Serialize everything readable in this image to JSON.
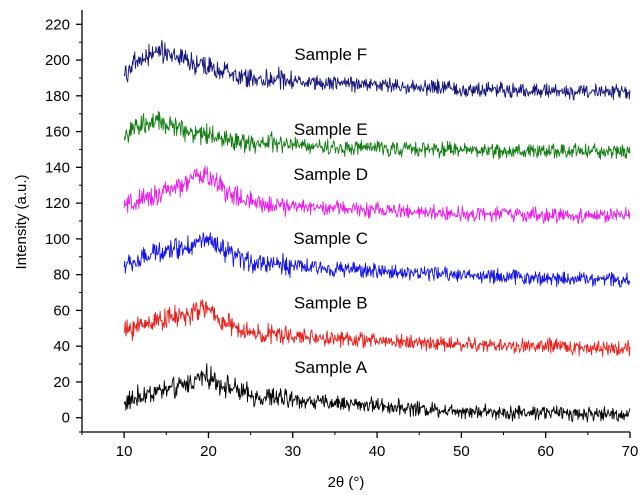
{
  "chart_data": {
    "type": "line",
    "title": "",
    "xlabel": "2θ (°)",
    "ylabel": "Intensity (a.u.)",
    "xlim": [
      5,
      70
    ],
    "ylim": [
      -8,
      228
    ],
    "x_ticks": [
      10,
      20,
      30,
      40,
      50,
      60,
      70
    ],
    "x_tick_labels": [
      "10",
      "20",
      "30",
      "40",
      "50",
      "60",
      "70"
    ],
    "y_ticks": [
      0,
      20,
      40,
      60,
      80,
      100,
      120,
      140,
      160,
      180,
      200,
      220
    ],
    "y_tick_labels": [
      "0",
      "20",
      "40",
      "60",
      "80",
      "100",
      "120",
      "140",
      "160",
      "180",
      "200",
      "220"
    ],
    "grid": false,
    "legend": "labels placed directly above each trace",
    "series": [
      {
        "name": "Sample A",
        "color": "#000000",
        "label_at": {
          "x": 34.5,
          "y": 25
        },
        "x": [
          10,
          12,
          14,
          16,
          18,
          19.5,
          21,
          23,
          25,
          28,
          32,
          36,
          40,
          45,
          50,
          55,
          60,
          65,
          70
        ],
        "y": [
          8,
          12,
          15,
          16,
          20,
          24,
          20,
          16,
          12,
          11,
          9,
          8,
          7,
          5,
          4,
          3,
          3,
          2,
          2
        ]
      },
      {
        "name": "Sample B",
        "color": "#e8201c",
        "label_at": {
          "x": 34.5,
          "y": 61
        },
        "x": [
          10,
          12,
          14,
          16,
          18,
          19.5,
          21,
          23,
          25,
          28,
          32,
          36,
          40,
          45,
          50,
          55,
          60,
          65,
          70
        ],
        "y": [
          48,
          52,
          55,
          56,
          58,
          62,
          56,
          50,
          47,
          46,
          45,
          44,
          43,
          42,
          41,
          40,
          40,
          39,
          39
        ]
      },
      {
        "name": "Sample C",
        "color": "#1414e6",
        "label_at": {
          "x": 34.5,
          "y": 97
        },
        "x": [
          10,
          12,
          14,
          16,
          18,
          19.5,
          21,
          23,
          25,
          28,
          32,
          36,
          40,
          45,
          50,
          55,
          60,
          65,
          70
        ],
        "y": [
          85,
          88,
          93,
          95,
          96,
          100,
          95,
          90,
          87,
          86,
          84,
          83,
          82,
          81,
          80,
          79,
          78,
          78,
          77
        ]
      },
      {
        "name": "Sample D",
        "color": "#e81ee8",
        "label_at": {
          "x": 34.5,
          "y": 133
        },
        "x": [
          10,
          12,
          14,
          16,
          18,
          19.5,
          21,
          23,
          25,
          28,
          32,
          36,
          40,
          45,
          50,
          55,
          60,
          65,
          70
        ],
        "y": [
          118,
          121,
          125,
          128,
          133,
          137,
          131,
          124,
          120,
          119,
          118,
          117,
          116,
          115,
          114,
          114,
          113,
          113,
          113
        ]
      },
      {
        "name": "Sample E",
        "color": "#127d12",
        "label_at": {
          "x": 34.5,
          "y": 158
        },
        "x": [
          10,
          12,
          14,
          16,
          18,
          19.5,
          21,
          23,
          25,
          28,
          32,
          36,
          40,
          45,
          50,
          55,
          60,
          65,
          70
        ],
        "y": [
          158,
          163,
          165,
          163,
          160,
          159,
          157,
          155,
          154,
          153,
          152,
          151,
          151,
          150,
          150,
          149,
          149,
          149,
          149
        ]
      },
      {
        "name": "Sample F",
        "color": "#15157a",
        "label_at": {
          "x": 34.5,
          "y": 200
        },
        "x": [
          10,
          12,
          14,
          16,
          18,
          19.5,
          21,
          23,
          25,
          28,
          32,
          36,
          40,
          45,
          50,
          55,
          60,
          65,
          70
        ],
        "y": [
          193,
          200,
          205,
          203,
          198,
          196,
          194,
          192,
          190,
          189,
          188,
          187,
          186,
          185,
          184,
          183,
          183,
          182,
          182
        ]
      }
    ]
  }
}
